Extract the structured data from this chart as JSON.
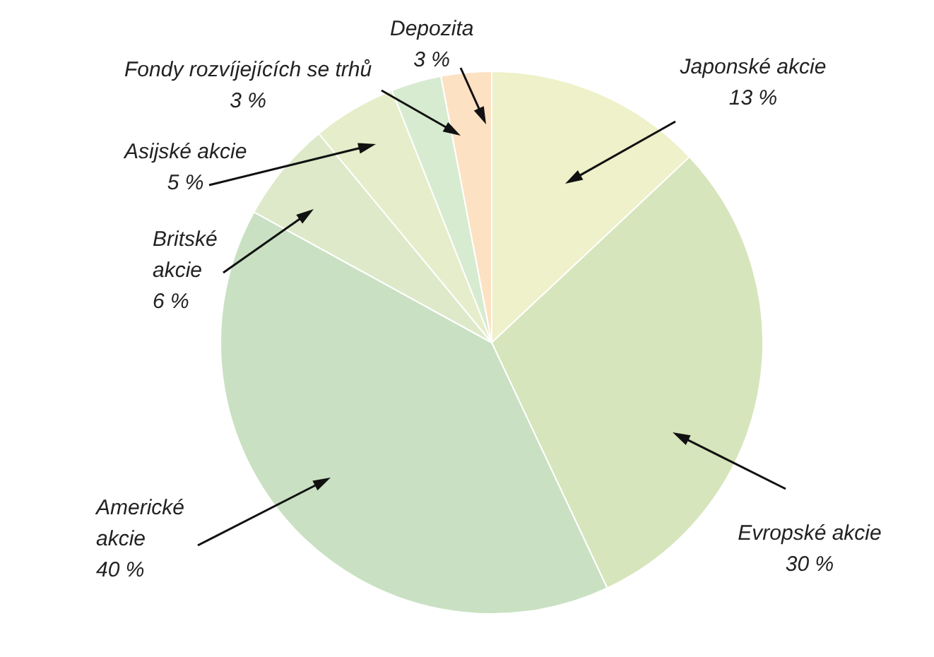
{
  "chart_data": {
    "type": "pie",
    "categories": [
      "Japonské akcie",
      "Evropské akcie",
      "Americké akcie",
      "Britské akcie",
      "Asijské akcie",
      "Fondy rozvíjejících se trhů",
      "Depozita"
    ],
    "values": [
      13,
      30,
      40,
      6,
      5,
      3,
      3
    ],
    "colors": [
      "#eef1c9",
      "#d6e5bb",
      "#c9e1c2",
      "#dde9c9",
      "#e6edca",
      "#d7ebd0",
      "#fde1c3"
    ],
    "value_labels": [
      "13 %",
      "30 %",
      "40 %",
      "6 %",
      "5 %",
      "3 %",
      "3 %"
    ],
    "legend": false
  }
}
